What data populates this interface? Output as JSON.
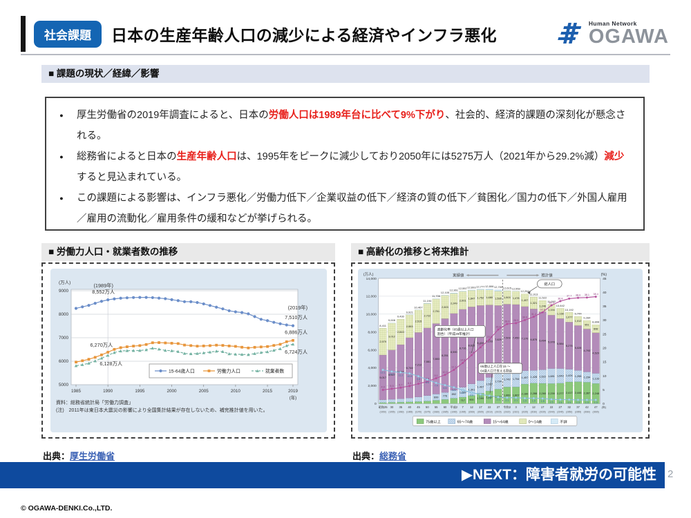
{
  "theme": {
    "accent_blue": "#1465b3",
    "banner_blue": "#0e4a9e",
    "em_red": "#e8211c",
    "link_blue": "#3c62b5",
    "logo_blue": "#1d5fae"
  },
  "header": {
    "badge": "社会課題",
    "title": "日本の生産年齢人口の減少による経済やインフラ悪化",
    "logo_tagline": "Human Network",
    "logo_name": "OGAWA"
  },
  "sections": {
    "overview": "■ 課題の現状／経緯／影響",
    "left": "■ 労働力人口・就業者数の推移",
    "right": "■ 高齢化の推移と将来推計"
  },
  "bullets": [
    {
      "segments": [
        {
          "text": "厚生労働省の2019年調査によると、日本の"
        },
        {
          "text": "労働人口は1989年台に比べて9%下がり",
          "em": true
        },
        {
          "text": "、社会的、経済的課題の深刻化が懸念される。"
        }
      ]
    },
    {
      "segments": [
        {
          "text": "総務省によると日本の"
        },
        {
          "text": "生産年齢人口",
          "em": true
        },
        {
          "text": "は、1995年をピークに減少しており2050年には5275万人（2021年から29.2%減）"
        },
        {
          "text": "減少",
          "em": true
        },
        {
          "text": "すると見込まれている。"
        }
      ]
    },
    {
      "segments": [
        {
          "text": "この課題による影響は、インフラ悪化／労働力低下／企業収益の低下／経済の質の低下／貧困化／国力の低下／外国人雇用／雇用の流動化／雇用条件の緩和などが挙げられる。"
        }
      ]
    }
  ],
  "sources": {
    "left_label": "出典：",
    "left_link": "厚生労働省",
    "right_label": "出典：",
    "right_link": "総務省"
  },
  "footer": {
    "next": "▶NEXT：障害者就労の可能性",
    "page": "2",
    "copyright": "© OGAWA-DENKI.Co.,LTD."
  },
  "chart_data": [
    {
      "type": "line",
      "title": "労働力人口・就業者数の推移",
      "panel_bg": "#dce7f1",
      "unit_label": "(万人)",
      "x_start": 1985,
      "xticks": [
        1985,
        1990,
        1995,
        2000,
        2005,
        2010,
        2015,
        2019
      ],
      "x_suffix": "(年)",
      "ylim": [
        5000,
        9200
      ],
      "yticks": [
        5000,
        6000,
        7000,
        8000,
        9000
      ],
      "series": [
        {
          "name": "15-64歳人口",
          "color": "#6b8ec9",
          "marker": "circle",
          "dash": false,
          "values": [
            8251,
            8315,
            8378,
            8468,
            8552,
            8614,
            8655,
            8684,
            8700,
            8712,
            8717,
            8716,
            8708,
            8687,
            8663,
            8622,
            8581,
            8535,
            8533,
            8501,
            8442,
            8373,
            8301,
            8230,
            8149,
            8103,
            8073,
            8018,
            7901,
            7785,
            7728,
            7656,
            7596,
            7545,
            7510
          ]
        },
        {
          "name": "労働力人口",
          "color": "#e8963c",
          "marker": "square",
          "dash": false,
          "values": [
            5963,
            6020,
            6084,
            6166,
            6270,
            6384,
            6505,
            6578,
            6615,
            6645,
            6666,
            6711,
            6787,
            6793,
            6779,
            6766,
            6752,
            6689,
            6666,
            6642,
            6651,
            6664,
            6684,
            6674,
            6650,
            6632,
            6596,
            6565,
            6593,
            6609,
            6625,
            6673,
            6720,
            6830,
            6886
          ]
        },
        {
          "name": "就業者数",
          "color": "#74b2a2",
          "marker": "triangle",
          "dash": true,
          "values": [
            5807,
            5853,
            5911,
            6011,
            6128,
            6249,
            6369,
            6436,
            6450,
            6453,
            6457,
            6486,
            6557,
            6514,
            6462,
            6446,
            6412,
            6330,
            6316,
            6329,
            6356,
            6389,
            6427,
            6409,
            6314,
            6298,
            6289,
            6280,
            6326,
            6371,
            6401,
            6465,
            6530,
            6664,
            6724
          ]
        }
      ],
      "annotations": [
        {
          "text": "(1989年)",
          "year": 1989.3,
          "value": 9150
        },
        {
          "text": "8,552万人",
          "year": 1989.3,
          "value": 8880
        },
        {
          "text": "(2019年)",
          "value": 8200,
          "right": true
        },
        {
          "text": "7,510万人",
          "value": 7790,
          "right": true
        },
        {
          "text": "6,886万人",
          "value": 7160,
          "right": true
        },
        {
          "text": "6,724万人",
          "value": 6330,
          "right": true
        },
        {
          "text": "6,270万人",
          "year": 1989,
          "value": 6620
        },
        {
          "text": "6,128万人",
          "year": 1990.5,
          "value": 5830
        }
      ],
      "notes": [
        "資料：総務省統計局「労働力調査」",
        "(注)　2011年は東日本大震災の影響により全国集計結果が存在しないため、補完推計値を用いた。"
      ]
    },
    {
      "type": "stacked-bar-line",
      "title": "高齢化の推移と将来推計",
      "panel_bg": "#d8e5f1",
      "unit_left": "(万人)",
      "unit_right": "(%)",
      "ylim_left": [
        0,
        14000
      ],
      "ylim_right": [
        0,
        45
      ],
      "header": {
        "actual": "実績値",
        "projection": "推計値"
      },
      "divider_index": 14,
      "x_suffix": "(年)",
      "era_labels": [
        "昭和25",
        "30",
        "35",
        "40",
        "45",
        "50",
        "55",
        "60",
        "平成2",
        "7",
        "12",
        "17",
        "22",
        "27",
        "令和2",
        "3",
        "7",
        "12",
        "17",
        "22",
        "27",
        "32",
        "37",
        "42",
        "47"
      ],
      "year_labels": [
        "(1950)",
        "(1955)",
        "(1960)",
        "(1965)",
        "(1970)",
        "(1975)",
        "(1980)",
        "(1985)",
        "(1990)",
        "(1995)",
        "(2000)",
        "(2005)",
        "(2010)",
        "(2015)",
        "(2020)",
        "(2021)",
        "(2025)",
        "(2030)",
        "(2035)",
        "(2040)",
        "(2045)",
        "(2050)",
        "(2055)",
        "(2060)",
        "(2065)"
      ],
      "totals": [
        8411,
        9008,
        9430,
        9921,
        10467,
        11194,
        11706,
        12105,
        12361,
        12557,
        12693,
        12777,
        12806,
        12709,
        12615,
        12550,
        12254,
        11913,
        11522,
        11092,
        10642,
        10192,
        9744,
        9284,
        8808
      ],
      "groups": [
        {
          "name": "75歳以上",
          "fill": "#8cc87c",
          "stroke": "#649e57",
          "values": [
            107,
            139,
            164,
            189,
            221,
            284,
            366,
            471,
            597,
            717,
            900,
            1160,
            1407,
            1613,
            1860,
            1867,
            2180,
            2288,
            2260,
            2239,
            2277,
            2417,
            2446,
            2387,
            2248
          ]
        },
        {
          "name": "65～74歳",
          "fill": "cross",
          "stroke": "#7fa6c9",
          "values": [
            309,
            338,
            376,
            434,
            516,
            602,
            699,
            776,
            892,
            1109,
            1301,
            1407,
            1517,
            1734,
            1742,
            1754,
            1497,
            1428,
            1522,
            1681,
            1643,
            1424,
            1258,
            1154,
            1133
          ]
        },
        {
          "name": "15～64歳",
          "fill": "#b38bb9",
          "stroke": "#8d6a94",
          "values": [
            5017,
            5517,
            6047,
            6744,
            7212,
            7581,
            7883,
            8251,
            8590,
            8716,
            8622,
            8409,
            8103,
            7629,
            7509,
            7450,
            7170,
            6875,
            6494,
            5978,
            5584,
            5275,
            5028,
            4793,
            4529
          ]
        },
        {
          "name": "0～14歳",
          "fill": "check",
          "stroke": "#a9b579",
          "values": [
            2979,
            3012,
            2843,
            2553,
            2515,
            2722,
            2751,
            2603,
            2249,
            2001,
            1847,
            1752,
            1680,
            1595,
            1503,
            1478,
            1407,
            1321,
            1246,
            1194,
            1138,
            1077,
            1012,
            951,
            898
          ]
        },
        {
          "name": "不詳",
          "fill": "#d6eaf6",
          "stroke": "#9cc3dc",
          "values": [
            0,
            2,
            0,
            1,
            3,
            5,
            7,
            4,
            33,
            14,
            23,
            49,
            99,
            138,
            1,
            1,
            0,
            0,
            0,
            0,
            0,
            0,
            0,
            0,
            0
          ]
        }
      ],
      "lines": [
        {
          "name": "高齢化率（65歳以上人口割合）（平成29年推計）",
          "color": "#b5519c",
          "label_color": "#8d3a7c",
          "marker": "circle",
          "values": [
            4.9,
            5.3,
            5.7,
            6.3,
            7.1,
            7.9,
            9.1,
            10.3,
            12.1,
            14.6,
            17.4,
            20.2,
            23.0,
            26.6,
            28.6,
            28.9,
            30.0,
            31.2,
            32.8,
            35.3,
            36.8,
            37.7,
            38.0,
            38.1,
            38.4
          ]
        },
        {
          "name": "65歳以上人口を15～64歳人口で支える割合",
          "color": "#85bedd",
          "label_color": "#34769f",
          "marker": "diamond",
          "values": [
            12.1,
            11.5,
            11.2,
            10.8,
            9.8,
            8.6,
            7.4,
            6.6,
            5.8,
            4.8,
            3.9,
            3.3,
            2.8,
            2.3,
            2.1,
            2.1,
            1.9,
            1.9,
            1.8,
            1.5,
            1.4,
            1.4,
            1.3,
            1.3,
            1.3
          ]
        }
      ],
      "callouts": {
        "total": "総人口",
        "rate": [
          "高齢化率（65歳以上人口",
          "割合）（平成29年推計）"
        ],
        "support": [
          "65歳以上人口を15 ～",
          "64歳人口で支える割合"
        ]
      }
    }
  ]
}
